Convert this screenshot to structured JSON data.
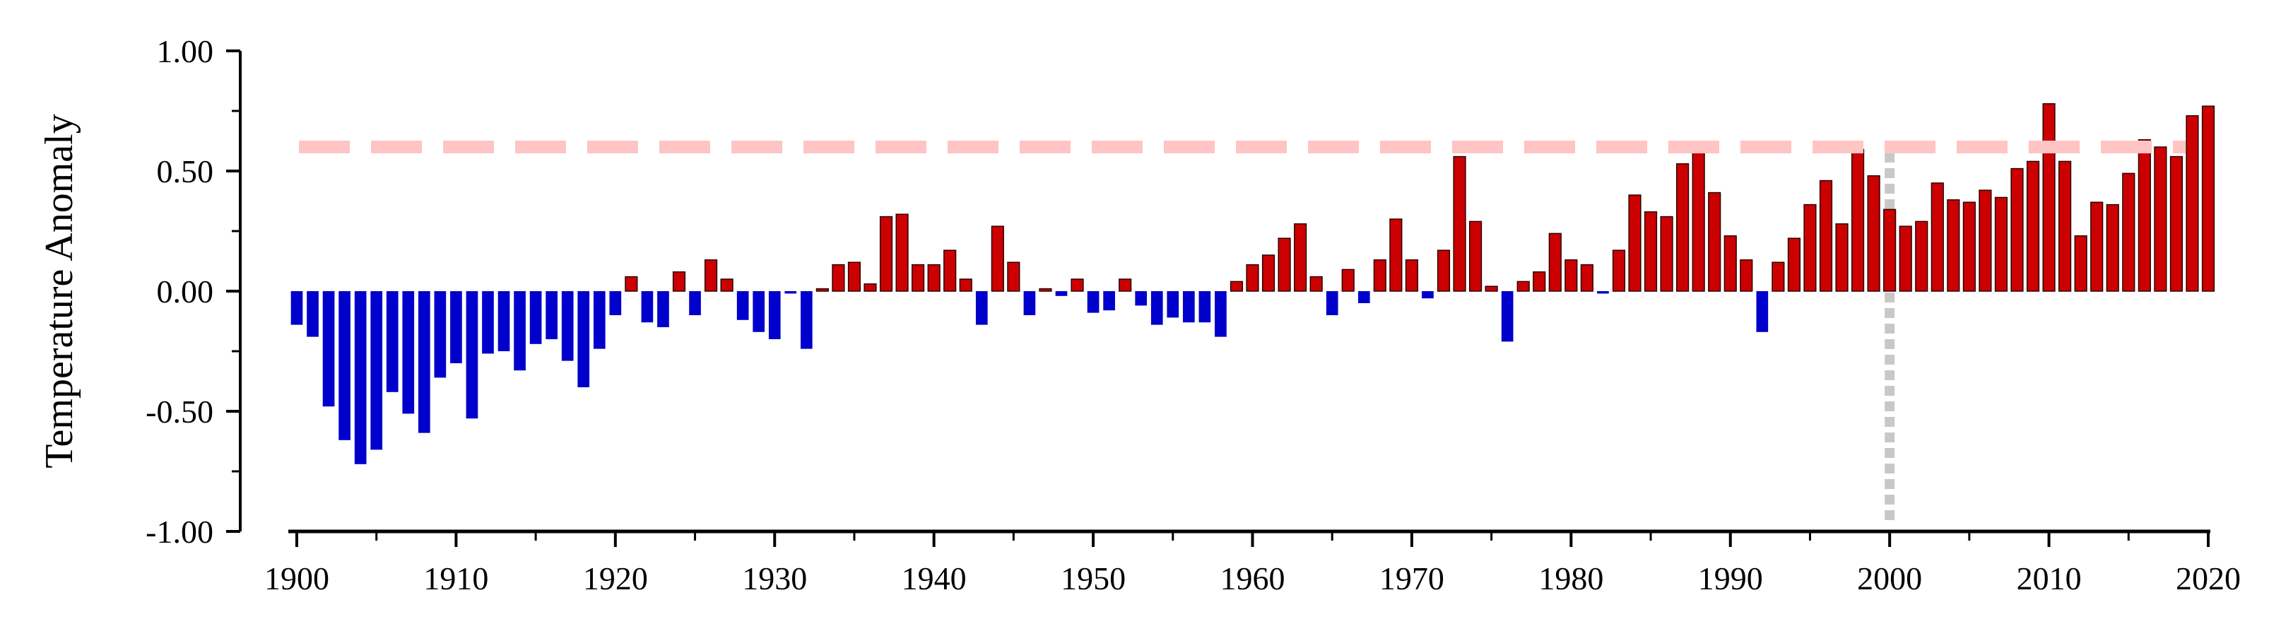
{
  "chart_data": {
    "type": "bar",
    "title": "",
    "xlabel": "",
    "ylabel": "Temperature Anomaly",
    "xlim": [
      1900,
      2020
    ],
    "ylim": [
      -1.0,
      1.0
    ],
    "x_ticks": [
      "1900",
      "1910",
      "1920",
      "1930",
      "1940",
      "1950",
      "1960",
      "1970",
      "1980",
      "1990",
      "2000",
      "2010",
      "2020"
    ],
    "y_ticks": [
      "1.00",
      "0.50",
      "0.00",
      "-0.50",
      "-1.00"
    ],
    "grid": false,
    "legend": "none",
    "colors": {
      "positive": "#cc0000",
      "negative": "#0000cc",
      "reference_line": "#ffc4c4",
      "marker_line": "#c8c8c8"
    },
    "reference_line_y": 0.6,
    "marker_line_x": 2000,
    "x": [
      1900,
      1901,
      1902,
      1903,
      1904,
      1905,
      1906,
      1907,
      1908,
      1909,
      1910,
      1911,
      1912,
      1913,
      1914,
      1915,
      1916,
      1917,
      1918,
      1919,
      1920,
      1921,
      1922,
      1923,
      1924,
      1925,
      1926,
      1927,
      1928,
      1929,
      1930,
      1931,
      1932,
      1933,
      1934,
      1935,
      1936,
      1937,
      1938,
      1939,
      1940,
      1941,
      1942,
      1943,
      1944,
      1945,
      1946,
      1947,
      1948,
      1949,
      1950,
      1951,
      1952,
      1953,
      1954,
      1955,
      1956,
      1957,
      1958,
      1959,
      1960,
      1961,
      1962,
      1963,
      1964,
      1965,
      1966,
      1967,
      1968,
      1969,
      1970,
      1971,
      1972,
      1973,
      1974,
      1975,
      1976,
      1977,
      1978,
      1979,
      1980,
      1981,
      1982,
      1983,
      1984,
      1985,
      1986,
      1987,
      1988,
      1989,
      1990,
      1991,
      1992,
      1993,
      1994,
      1995,
      1996,
      1997,
      1998,
      1999,
      2000,
      2001,
      2002,
      2003,
      2004,
      2005,
      2006,
      2007,
      2008,
      2009,
      2010,
      2011,
      2012,
      2013,
      2014,
      2015,
      2016,
      2017,
      2018,
      2019,
      2020
    ],
    "values": [
      -0.14,
      -0.19,
      -0.48,
      -0.62,
      -0.72,
      -0.66,
      -0.42,
      -0.51,
      -0.59,
      -0.36,
      -0.3,
      -0.53,
      -0.26,
      -0.25,
      -0.33,
      -0.22,
      -0.2,
      -0.29,
      -0.4,
      -0.24,
      -0.1,
      0.06,
      -0.13,
      -0.15,
      0.08,
      -0.1,
      0.13,
      0.05,
      -0.12,
      -0.17,
      -0.2,
      -0.01,
      -0.24,
      0.01,
      0.11,
      0.12,
      0.03,
      0.31,
      0.32,
      0.11,
      0.11,
      0.17,
      0.05,
      -0.14,
      0.27,
      0.12,
      -0.1,
      0.01,
      -0.02,
      0.05,
      -0.09,
      -0.08,
      0.05,
      -0.06,
      -0.14,
      -0.11,
      -0.13,
      -0.13,
      -0.19,
      0.04,
      0.11,
      0.15,
      0.22,
      0.28,
      0.06,
      -0.1,
      0.09,
      -0.05,
      0.13,
      0.3,
      0.13,
      -0.03,
      0.17,
      0.56,
      0.29,
      0.02,
      -0.21,
      0.04,
      0.08,
      0.24,
      0.13,
      0.11,
      -0.01,
      0.17,
      0.4,
      0.33,
      0.31,
      0.53,
      0.6,
      0.41,
      0.23,
      0.13,
      -0.17,
      0.12,
      0.22,
      0.36,
      0.46,
      0.28,
      0.59,
      0.48,
      0.34,
      0.27,
      0.29,
      0.45,
      0.38,
      0.37,
      0.42,
      0.39,
      0.51,
      0.54,
      0.78,
      0.54,
      0.23,
      0.37,
      0.36,
      0.49,
      0.63,
      0.6,
      0.56,
      0.73,
      0.77
    ]
  }
}
